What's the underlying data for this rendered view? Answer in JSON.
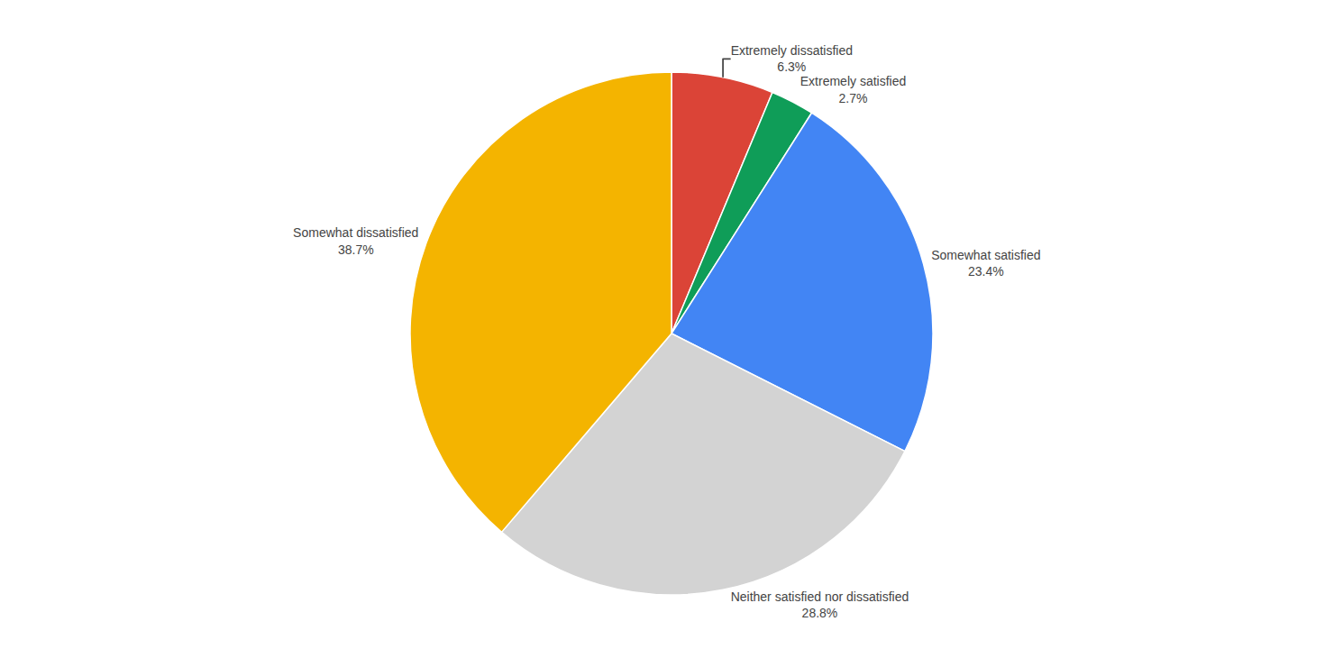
{
  "chart_data": {
    "type": "pie",
    "categories": [
      "Extremely dissatisfied",
      "Extremely satisfied",
      "Somewhat satisfied",
      "Neither satisfied nor dissatisfied",
      "Somewhat dissatisfied"
    ],
    "values": [
      6.3,
      2.7,
      23.4,
      28.8,
      38.7
    ],
    "value_labels": [
      "6.3%",
      "2.7%",
      "23.4%",
      "28.8%",
      "38.7%"
    ],
    "colors": [
      "#db4437",
      "#0f9d58",
      "#4285f4",
      "#d3d3d3",
      "#f4b400"
    ],
    "data_labels": true
  }
}
